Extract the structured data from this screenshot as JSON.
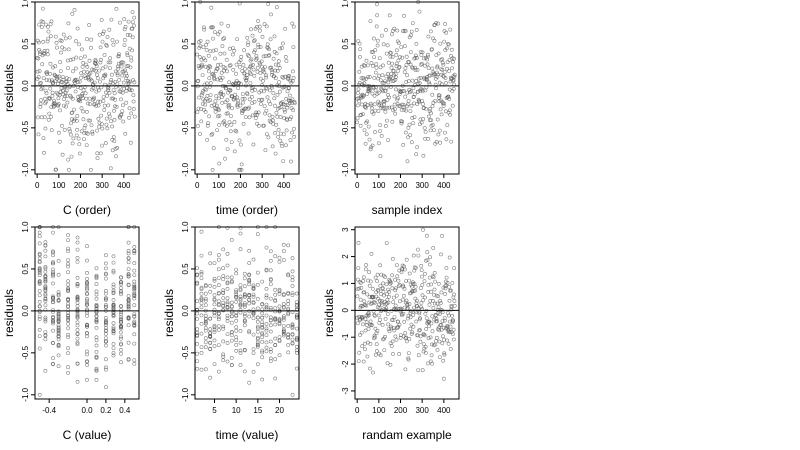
{
  "chart_data": [
    {
      "type": "scatter",
      "xlabel": "C (order)",
      "ylabel": "residuals",
      "xlim": [
        -10,
        470
      ],
      "ylim": [
        -1.05,
        1.0
      ],
      "xticks": [
        0,
        100,
        200,
        300,
        400
      ],
      "xtick_labels": [
        "0",
        "100",
        "200",
        "300",
        "400"
      ],
      "yticks": [
        -1.0,
        -0.5,
        0.0,
        0.5,
        1.0
      ],
      "ytick_labels": [
        "-1.0",
        "-0.5",
        "0.0",
        "0.5",
        "1.0"
      ],
      "reference_line_y": 0,
      "n_points": 450,
      "x_range": [
        0,
        450
      ],
      "y_range": [
        -1.0,
        1.0
      ],
      "x_pattern": "index",
      "trend": "u"
    },
    {
      "type": "scatter",
      "xlabel": "time (order)",
      "ylabel": "residuals",
      "xlim": [
        -10,
        470
      ],
      "ylim": [
        -1.05,
        1.0
      ],
      "xticks": [
        0,
        100,
        200,
        300,
        400
      ],
      "xtick_labels": [
        "0",
        "100",
        "200",
        "300",
        "400"
      ],
      "yticks": [
        -1.0,
        -0.5,
        0.0,
        0.5,
        1.0
      ],
      "ytick_labels": [
        "-1.0",
        "-0.5",
        "0.0",
        "0.5",
        "1.0"
      ],
      "reference_line_y": 0,
      "n_points": 450,
      "x_range": [
        0,
        450
      ],
      "y_range": [
        -1.0,
        1.0
      ],
      "x_pattern": "index",
      "trend": "wave"
    },
    {
      "type": "scatter",
      "xlabel": "sample index",
      "ylabel": "residuals",
      "xlim": [
        -10,
        470
      ],
      "ylim": [
        -1.05,
        1.0
      ],
      "xticks": [
        0,
        100,
        200,
        300,
        400
      ],
      "xtick_labels": [
        "0",
        "100",
        "200",
        "300",
        "400"
      ],
      "yticks": [
        -1.0,
        -0.5,
        0.0,
        0.5,
        1.0
      ],
      "ytick_labels": [
        "-1.0",
        "-0.5",
        "0.0",
        "0.5",
        "1.0"
      ],
      "reference_line_y": 0,
      "n_points": 450,
      "x_range": [
        0,
        450
      ],
      "y_range": [
        -1.0,
        1.0
      ],
      "x_pattern": "index",
      "trend": "none"
    },
    {
      "type": "scatter",
      "xlabel": "C (value)",
      "ylabel": "residuals",
      "xlim": [
        -0.55,
        0.55
      ],
      "ylim": [
        -1.05,
        1.0
      ],
      "xticks": [
        -0.4,
        0.0,
        0.2,
        0.4
      ],
      "xtick_labels": [
        "-0.4",
        "0.0",
        "0.2",
        "0.4"
      ],
      "yticks": [
        -1.0,
        -0.5,
        0.0,
        0.5,
        1.0
      ],
      "ytick_labels": [
        "-1.0",
        "-0.5",
        "0.0",
        "0.5",
        "1.0"
      ],
      "reference_line_y": 0,
      "n_points": 450,
      "x_range": [
        -0.5,
        0.5
      ],
      "y_range": [
        -1.0,
        1.0
      ],
      "x_pattern": "columns",
      "x_columns": [
        -0.5,
        -0.44,
        -0.36,
        -0.3,
        -0.2,
        -0.1,
        0.0,
        0.1,
        0.2,
        0.28,
        0.36,
        0.44,
        0.5
      ],
      "trend": "u"
    },
    {
      "type": "scatter",
      "xlabel": "time (value)",
      "ylabel": "residuals",
      "xlim": [
        0.5,
        24.5
      ],
      "ylim": [
        -1.05,
        1.0
      ],
      "xticks": [
        5,
        10,
        15,
        20
      ],
      "xtick_labels": [
        "5",
        "10",
        "15",
        "20"
      ],
      "yticks": [
        -1.0,
        -0.5,
        0.0,
        0.5,
        1.0
      ],
      "ytick_labels": [
        "-1.0",
        "-0.5",
        "0.0",
        "0.5",
        "1.0"
      ],
      "reference_line_y": 0,
      "n_points": 450,
      "x_range": [
        1,
        24
      ],
      "y_range": [
        -1.0,
        1.0
      ],
      "x_pattern": "columns",
      "x_columns": [
        1,
        2,
        3,
        4,
        5,
        6,
        7,
        8,
        9,
        10,
        11,
        12,
        13,
        14,
        15,
        16,
        17,
        18,
        19,
        20,
        21,
        22,
        23,
        24
      ],
      "trend": "none"
    },
    {
      "type": "scatter",
      "xlabel": "randam example",
      "ylabel": "residuals",
      "xlim": [
        -10,
        470
      ],
      "ylim": [
        -3.3,
        3.1
      ],
      "xticks": [
        0,
        100,
        200,
        300,
        400
      ],
      "xtick_labels": [
        "0",
        "100",
        "200",
        "300",
        "400"
      ],
      "yticks": [
        -3,
        -2,
        -1,
        0,
        1,
        2,
        3
      ],
      "ytick_labels": [
        "-3",
        "-2",
        "-1",
        "0",
        "1",
        "2",
        "3"
      ],
      "reference_line_y": 0,
      "n_points": 450,
      "x_range": [
        0,
        450
      ],
      "y_range": [
        -3.0,
        3.0
      ],
      "x_pattern": "index",
      "trend": "normal"
    }
  ]
}
